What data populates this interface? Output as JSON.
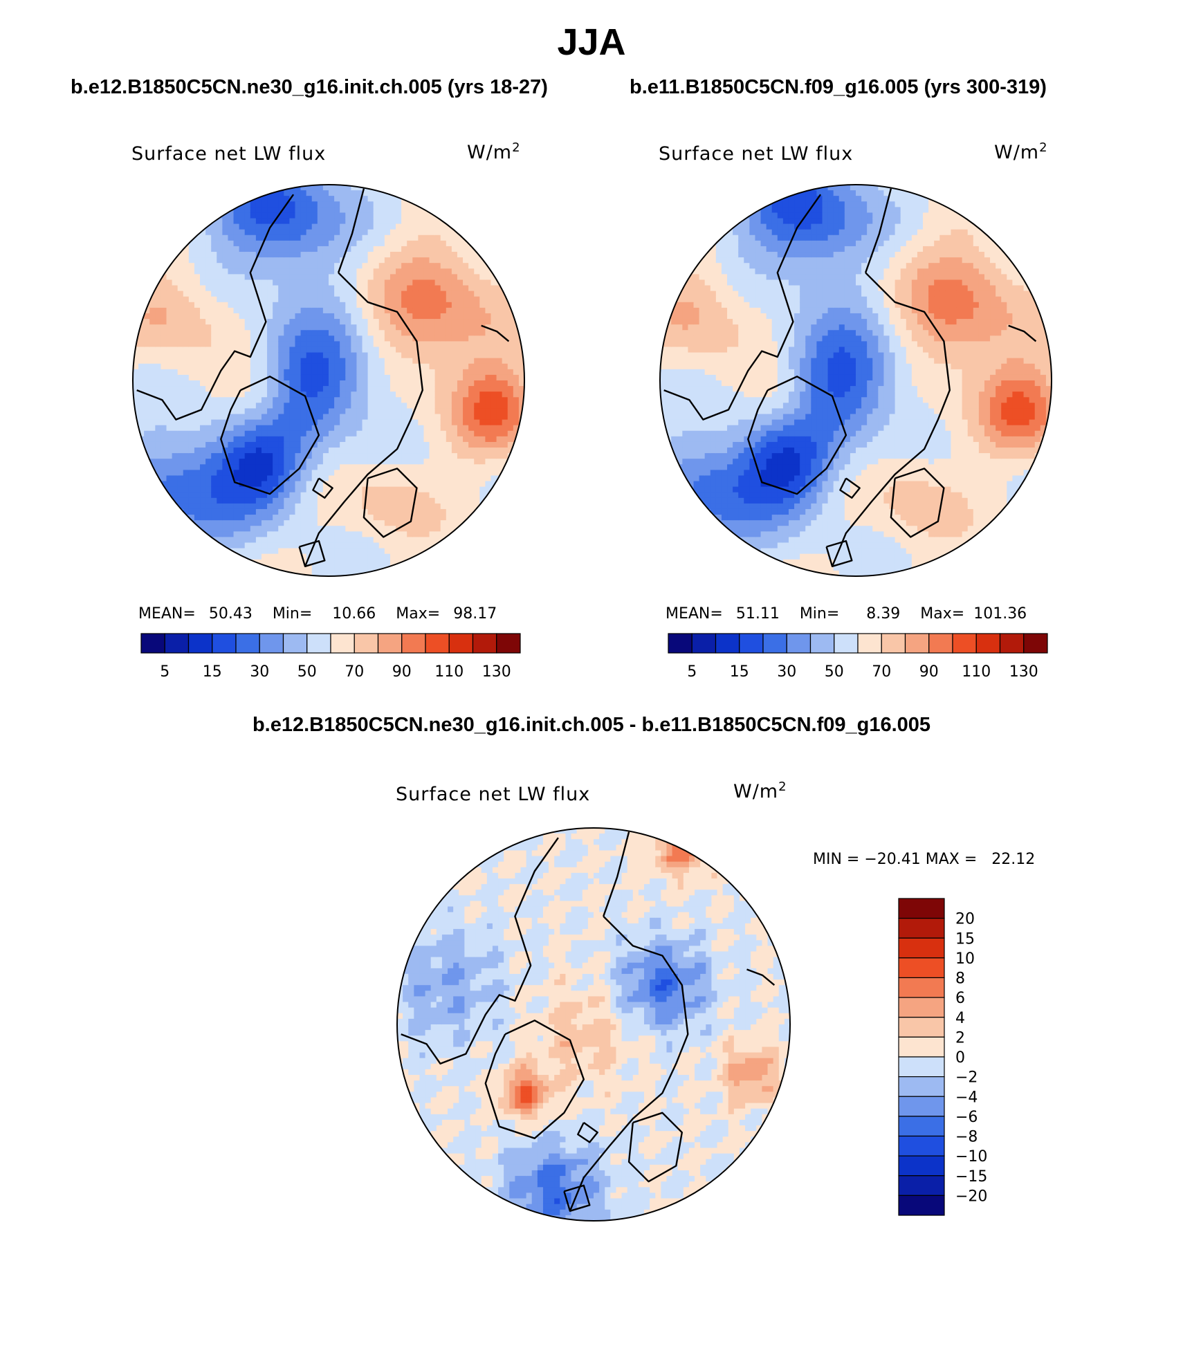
{
  "figure": {
    "title": "JJA",
    "panel_left_title": "b.e12.B1850C5CN.ne30_g16.init.ch.005 (yrs 18-27)",
    "panel_right_title": "b.e11.B1850C5CN.f09_g16.005 (yrs 300-319)",
    "diff_title": "b.e12.B1850C5CN.ne30_g16.init.ch.005 - b.e11.B1850C5CN.f09_g16.005",
    "colors": {
      "abs_levels": [
        "#08087a",
        "#0a1fa8",
        "#0c33c9",
        "#1f4fe0",
        "#3b6fe6",
        "#6f96ec",
        "#9dbaf2",
        "#cde0fa",
        "#fde4d0",
        "#f9c6a8",
        "#f5a481",
        "#f27a52",
        "#ed4f25",
        "#d8300f",
        "#b21a0a",
        "#7e0606"
      ],
      "diff_levels": [
        "#08087a",
        "#0a1fa8",
        "#0c33c9",
        "#1f4fe0",
        "#3b6fe6",
        "#6f96ec",
        "#9dbaf2",
        "#cde0fa",
        "#fde4d0",
        "#f9c6a8",
        "#f5a481",
        "#f27a52",
        "#ed4f25",
        "#d8300f",
        "#b21a0a",
        "#7e0606"
      ]
    }
  },
  "chart_data": [
    {
      "type": "heatmap",
      "projection": "north-polar-stereographic",
      "title": "Surface net LW flux",
      "units_main": "W/m",
      "units_exp": "2",
      "stats": {
        "mean_label": "MEAN=",
        "mean": "50.43",
        "min_label": "Min=",
        "min": "10.66",
        "max_label": "Max=",
        "max": "98.17"
      },
      "colorbar_ticks": [
        "5",
        "15",
        "30",
        "50",
        "70",
        "90",
        "110",
        "130"
      ],
      "field_bias": 0
    },
    {
      "type": "heatmap",
      "projection": "north-polar-stereographic",
      "title": "Surface net LW flux",
      "units_main": "W/m",
      "units_exp": "2",
      "stats": {
        "mean_label": "MEAN=",
        "mean": "51.11",
        "min_label": "Min=",
        "min": "8.39",
        "max_label": "Max=",
        "max": "101.36"
      },
      "colorbar_ticks": [
        "5",
        "15",
        "30",
        "50",
        "70",
        "90",
        "110",
        "130"
      ],
      "field_bias": 0.15
    },
    {
      "type": "heatmap",
      "projection": "north-polar-stereographic",
      "title": "Surface net LW flux",
      "units_main": "W/m",
      "units_exp": "2",
      "minmax_text": "MIN = −20.41 MAX =   22.12",
      "colorbar_ticks": [
        "20",
        "15",
        "10",
        "8",
        "6",
        "4",
        "2",
        "0",
        "−2",
        "−4",
        "−6",
        "−8",
        "−10",
        "−15",
        "−20"
      ],
      "field_bias": 0
    }
  ]
}
